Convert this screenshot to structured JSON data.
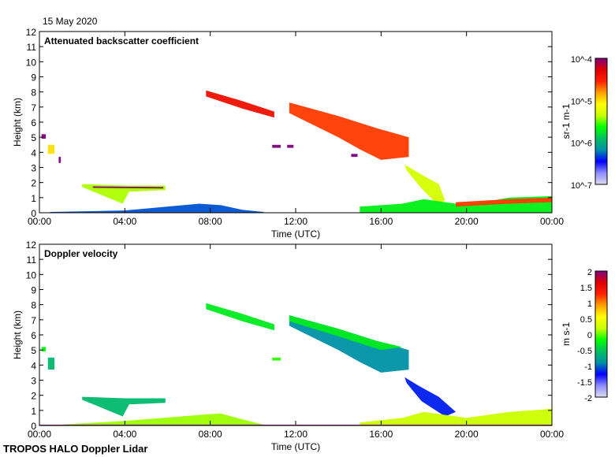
{
  "header": {
    "date": "15 May 2020"
  },
  "footer": {
    "instrument": "TROPOS HALO Doppler Lidar"
  },
  "colormap": [
    "#dcdcf0",
    "#8c8cff",
    "#0000ff",
    "#0090a8",
    "#00c060",
    "#00ff00",
    "#c8ff00",
    "#ffff00",
    "#ffa000",
    "#ff2000",
    "#e00000",
    "#800080"
  ],
  "chart_data": [
    {
      "type": "heatmap",
      "title": "Attenuated backscatter coefficient",
      "xlabel": "Time (UTC)",
      "ylabel": "Height (km)",
      "xlim": [
        0,
        24
      ],
      "ylim": [
        0,
        12
      ],
      "xticks": [
        0,
        4,
        8,
        12,
        16,
        20,
        24
      ],
      "xtick_labels": [
        "00:00",
        "04:00",
        "08:00",
        "12:00",
        "16:00",
        "20:00",
        "00:00"
      ],
      "yticks": [
        0,
        1,
        2,
        3,
        4,
        5,
        6,
        7,
        8,
        9,
        10,
        11,
        12
      ],
      "colorbar": {
        "label": "sr-1 m-1",
        "scale": "log10",
        "range": [
          -7,
          -4
        ],
        "ticks": [
          -7,
          -6,
          -5,
          -4
        ],
        "tick_labels": [
          "10^-7",
          "10^-6",
          "10^-5",
          "10^-4"
        ]
      },
      "features": [
        {
          "name": "cirrus-early",
          "value": -4.4,
          "t": [
            7.8,
            9.5,
            11.0,
            11.0,
            9.5,
            7.8
          ],
          "h": [
            8.1,
            7.4,
            6.7,
            6.3,
            6.9,
            7.7
          ]
        },
        {
          "name": "cirrus-main",
          "value": -4.6,
          "t": [
            11.7,
            14.0,
            15.8,
            17.3,
            17.3,
            16.0,
            15.0,
            14.0,
            11.7
          ],
          "h": [
            7.3,
            6.4,
            5.6,
            5.0,
            3.7,
            3.5,
            4.2,
            5.0,
            6.6
          ]
        },
        {
          "name": "cloud-descending",
          "value": -5.3,
          "t": [
            17.1,
            17.8,
            18.7,
            19.0,
            18.6,
            17.9,
            17.2
          ],
          "h": [
            3.2,
            2.6,
            1.9,
            0.8,
            0.6,
            1.6,
            2.8
          ]
        },
        {
          "name": "cloud-layer-morning",
          "value": -5.4,
          "t": [
            2.0,
            4.0,
            5.9,
            5.9,
            4.2,
            3.9,
            2.0
          ],
          "h": [
            1.9,
            1.8,
            1.8,
            1.5,
            1.4,
            0.6,
            1.7
          ]
        },
        {
          "name": "cloud-layer-top",
          "value": -4.0,
          "t": [
            2.5,
            5.8,
            5.8,
            2.5
          ],
          "h": [
            1.75,
            1.7,
            1.6,
            1.65
          ]
        },
        {
          "name": "boundary-layer-day",
          "value": -6.3,
          "t": [
            0.5,
            4,
            7.5,
            8.5,
            9.5,
            10.5,
            10.5,
            0.5
          ],
          "h": [
            0.05,
            0.15,
            0.6,
            0.5,
            0.2,
            0.05,
            0,
            0
          ]
        },
        {
          "name": "boundary-layer-evening",
          "value": -5.7,
          "t": [
            15.0,
            17.0,
            18.0,
            20,
            22,
            24,
            24,
            15.0
          ],
          "h": [
            0.4,
            0.6,
            0.9,
            0.5,
            1.0,
            1.1,
            0,
            0
          ]
        },
        {
          "name": "low-cloud-evening",
          "value": -4.6,
          "t": [
            19.5,
            22,
            24,
            24,
            22,
            19.5
          ],
          "h": [
            0.7,
            0.9,
            1.0,
            0.7,
            0.6,
            0.4
          ]
        },
        {
          "name": "spot-1",
          "value": -4.0,
          "t": [
            0.1,
            0.3,
            0.3,
            0.1
          ],
          "h": [
            5.2,
            5.2,
            4.9,
            4.9
          ]
        },
        {
          "name": "spot-2",
          "value": -5.0,
          "t": [
            0.4,
            0.7,
            0.7,
            0.4
          ],
          "h": [
            4.5,
            4.5,
            3.9,
            3.9
          ]
        },
        {
          "name": "spot-3",
          "value": -4.0,
          "t": [
            0.9,
            1.0,
            1.0,
            0.9
          ],
          "h": [
            3.7,
            3.7,
            3.3,
            3.3
          ]
        },
        {
          "name": "spot-4",
          "value": -4.0,
          "t": [
            10.9,
            11.3,
            11.3,
            10.9
          ],
          "h": [
            4.5,
            4.5,
            4.3,
            4.3
          ]
        },
        {
          "name": "spot-5",
          "value": -4.0,
          "t": [
            11.6,
            11.9,
            11.9,
            11.6
          ],
          "h": [
            4.5,
            4.5,
            4.3,
            4.3
          ]
        },
        {
          "name": "spot-6",
          "value": -4.0,
          "t": [
            14.6,
            14.9,
            14.9,
            14.6
          ],
          "h": [
            3.9,
            3.9,
            3.7,
            3.7
          ]
        }
      ]
    },
    {
      "type": "heatmap",
      "title": "Doppler velocity",
      "xlabel": "Time (UTC)",
      "ylabel": "Height (km)",
      "xlim": [
        0,
        24
      ],
      "ylim": [
        0,
        12
      ],
      "xticks": [
        0,
        4,
        8,
        12,
        16,
        20,
        24
      ],
      "xtick_labels": [
        "00:00",
        "04:00",
        "08:00",
        "12:00",
        "16:00",
        "20:00",
        "00:00"
      ],
      "yticks": [
        0,
        1,
        2,
        3,
        4,
        5,
        6,
        7,
        8,
        9,
        10,
        11,
        12
      ],
      "colorbar": {
        "label": "m s-1",
        "scale": "linear",
        "range": [
          -2,
          2
        ],
        "ticks": [
          -2,
          -1.5,
          -1,
          -0.5,
          0,
          0.5,
          1,
          1.5,
          2
        ],
        "tick_labels": [
          "-2",
          "-1.5",
          "-1",
          "-0.5",
          "0",
          "0.5",
          "1",
          "1.5",
          "2"
        ]
      },
      "features": [
        {
          "name": "cirrus-early",
          "value": -0.3,
          "t": [
            7.8,
            9.5,
            11.0,
            11.0,
            9.5,
            7.8
          ],
          "h": [
            8.1,
            7.4,
            6.7,
            6.3,
            6.9,
            7.7
          ]
        },
        {
          "name": "cirrus-main",
          "value": -0.9,
          "t": [
            11.7,
            14.0,
            15.8,
            17.3,
            17.3,
            16.0,
            15.0,
            14.0,
            11.7
          ],
          "h": [
            7.3,
            6.4,
            5.6,
            5.0,
            3.7,
            3.5,
            4.2,
            5.0,
            6.6
          ]
        },
        {
          "name": "cirrus-main-top",
          "value": -0.3,
          "t": [
            11.7,
            14.0,
            15.8,
            17.0,
            16.0,
            14.0,
            11.7
          ],
          "h": [
            7.3,
            6.4,
            5.6,
            5.2,
            5.0,
            5.9,
            6.9
          ]
        },
        {
          "name": "cloud-descending",
          "value": -1.2,
          "t": [
            17.1,
            17.8,
            18.7,
            19.5,
            19.0,
            17.9,
            17.2
          ],
          "h": [
            3.2,
            2.6,
            1.9,
            0.9,
            0.6,
            1.6,
            2.8
          ]
        },
        {
          "name": "cloud-layer-morning",
          "value": -0.6,
          "t": [
            2.0,
            4.0,
            5.9,
            5.9,
            4.2,
            3.9,
            2.0
          ],
          "h": [
            1.9,
            1.8,
            1.8,
            1.5,
            1.4,
            0.6,
            1.7
          ]
        },
        {
          "name": "boundary-layer-day",
          "value": 0.1,
          "t": [
            1.0,
            4,
            7.5,
            8.5,
            9.5,
            10.5,
            10.5,
            1.0
          ],
          "h": [
            0.05,
            0.3,
            0.7,
            0.8,
            0.4,
            0.05,
            0,
            0
          ]
        },
        {
          "name": "boundary-layer-evening",
          "value": 0.2,
          "t": [
            15.0,
            17.0,
            18.0,
            20,
            22,
            24,
            24,
            15.0
          ],
          "h": [
            0.2,
            0.5,
            0.9,
            0.5,
            0.9,
            1.1,
            0,
            0
          ]
        },
        {
          "name": "surface-line",
          "value": 2.0,
          "t": [
            0,
            24,
            24,
            0
          ],
          "h": [
            0.05,
            0.05,
            0,
            0
          ]
        },
        {
          "name": "spot-1",
          "value": -0.2,
          "t": [
            0.1,
            0.3,
            0.3,
            0.1
          ],
          "h": [
            5.2,
            5.2,
            4.9,
            4.9
          ]
        },
        {
          "name": "spot-2",
          "value": -0.6,
          "t": [
            0.4,
            0.7,
            0.7,
            0.4
          ],
          "h": [
            4.5,
            4.5,
            3.7,
            3.7
          ]
        },
        {
          "name": "spot-4",
          "value": -0.1,
          "t": [
            10.9,
            11.3,
            11.3,
            10.9
          ],
          "h": [
            4.5,
            4.5,
            4.3,
            4.3
          ]
        }
      ]
    }
  ]
}
